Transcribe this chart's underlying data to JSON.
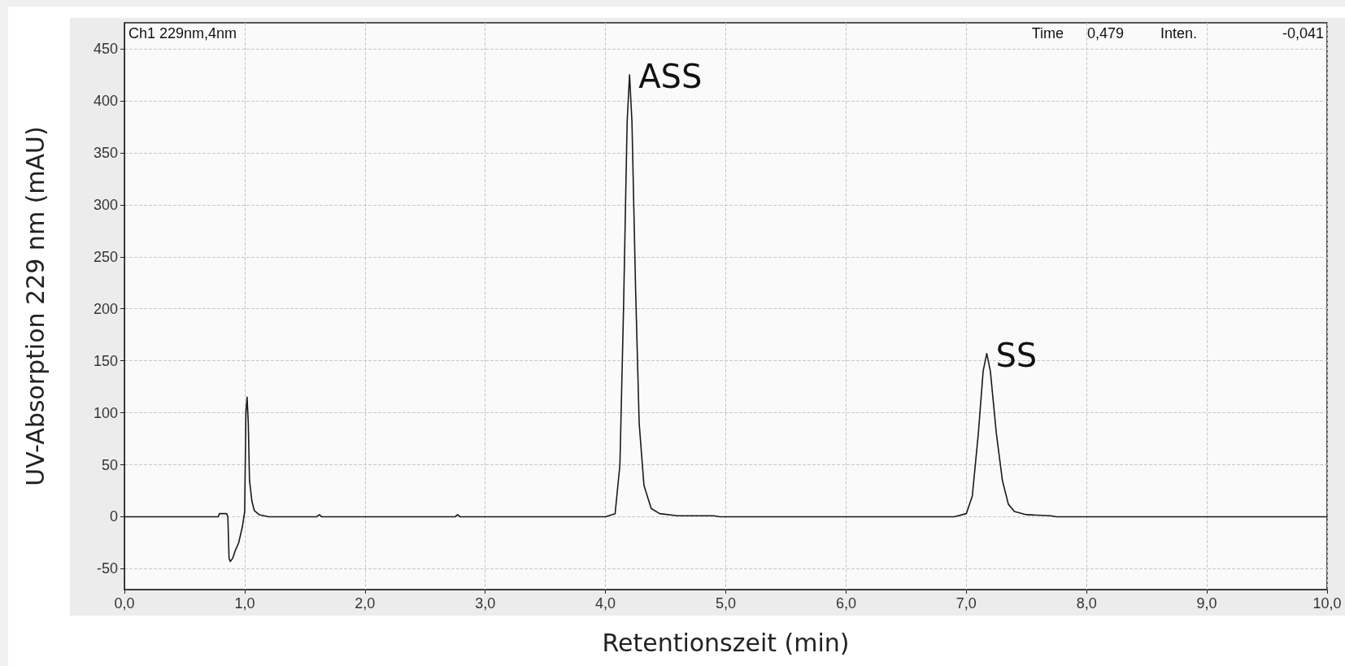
{
  "chart_data": {
    "type": "line",
    "xlabel": "Retentionszeit (min)",
    "ylabel": "UV-Absorption 229 nm (mAU)",
    "annotations": [
      "Ch1 229nm,4nm",
      "Time",
      "0,479",
      "Inten.",
      "-0,041",
      {
        "text": "ASS",
        "x": 4.2,
        "y": 425
      },
      {
        "text": "SS",
        "x": 7.17,
        "y": 157
      }
    ],
    "series": [
      {
        "color": "#1a1a1a",
        "x": [
          0,
          0.78,
          0.79,
          0.85,
          0.86,
          0.87,
          0.88,
          0.9,
          0.92,
          0.95,
          0.98,
          1.0,
          1.01,
          1.02,
          1.03,
          1.04,
          1.06,
          1.08,
          1.12,
          1.2,
          1.6,
          1.62,
          1.64,
          2.75,
          2.77,
          2.79,
          4.0,
          4.08,
          4.12,
          4.15,
          4.18,
          4.2,
          4.22,
          4.25,
          4.28,
          4.32,
          4.38,
          4.45,
          4.6,
          4.9,
          4.95,
          6.9,
          7.0,
          7.05,
          7.1,
          7.14,
          7.17,
          7.2,
          7.25,
          7.3,
          7.35,
          7.4,
          7.5,
          7.7,
          7.75,
          10
        ],
        "values": [
          0,
          0,
          3,
          3,
          0,
          -40,
          -43,
          -40,
          -33,
          -25,
          -10,
          5,
          100,
          115,
          90,
          35,
          15,
          6,
          2,
          0,
          0,
          2,
          0,
          0,
          2,
          0,
          0,
          3,
          50,
          200,
          380,
          425,
          380,
          220,
          90,
          30,
          8,
          3,
          1,
          1,
          0,
          0,
          3,
          20,
          80,
          140,
          157,
          140,
          80,
          35,
          12,
          5,
          2,
          1,
          0,
          0
        ]
      }
    ],
    "xlim": [
      0,
      10
    ],
    "xticks": [
      {
        "value": 0,
        "label": "0,0"
      },
      {
        "value": 1,
        "label": "1,0"
      },
      {
        "value": 2,
        "label": "2,0"
      },
      {
        "value": 3,
        "label": "3,0"
      },
      {
        "value": 4,
        "label": "4,0"
      },
      {
        "value": 5,
        "label": "5,0"
      },
      {
        "value": 6,
        "label": "6,0"
      },
      {
        "value": 7,
        "label": "7,0"
      },
      {
        "value": 8,
        "label": "8,0"
      },
      {
        "value": 9,
        "label": "9,0"
      },
      {
        "value": 10,
        "label": "10,0"
      }
    ],
    "ylim": [
      -70,
      475
    ],
    "yticks": [
      -50,
      0,
      50,
      100,
      150,
      200,
      250,
      300,
      350,
      400,
      450
    ],
    "grid": true,
    "marker": "none",
    "line_style": "solid"
  }
}
